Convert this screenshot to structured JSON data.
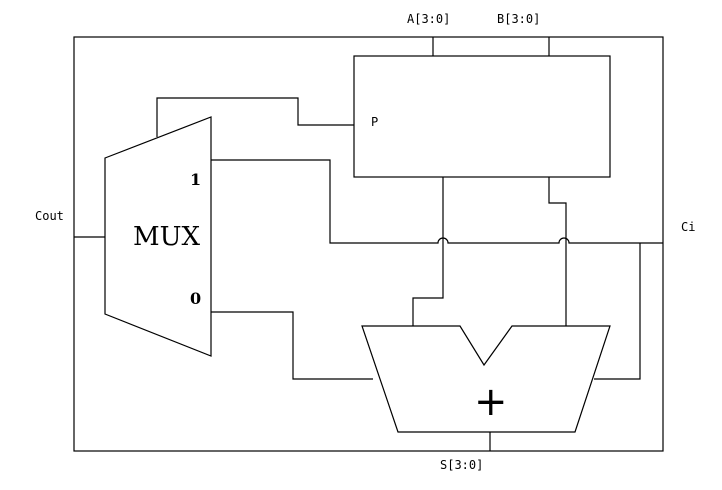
{
  "labels": {
    "input_a": "A[3:0]",
    "input_b": "B[3:0]",
    "carry_out": "Cout",
    "carry_in": "Ci",
    "sum_out": "S[3:0]",
    "block_p": "P",
    "mux": "MUX",
    "mux_in1": "1",
    "mux_in0": "0",
    "adder": "+"
  }
}
